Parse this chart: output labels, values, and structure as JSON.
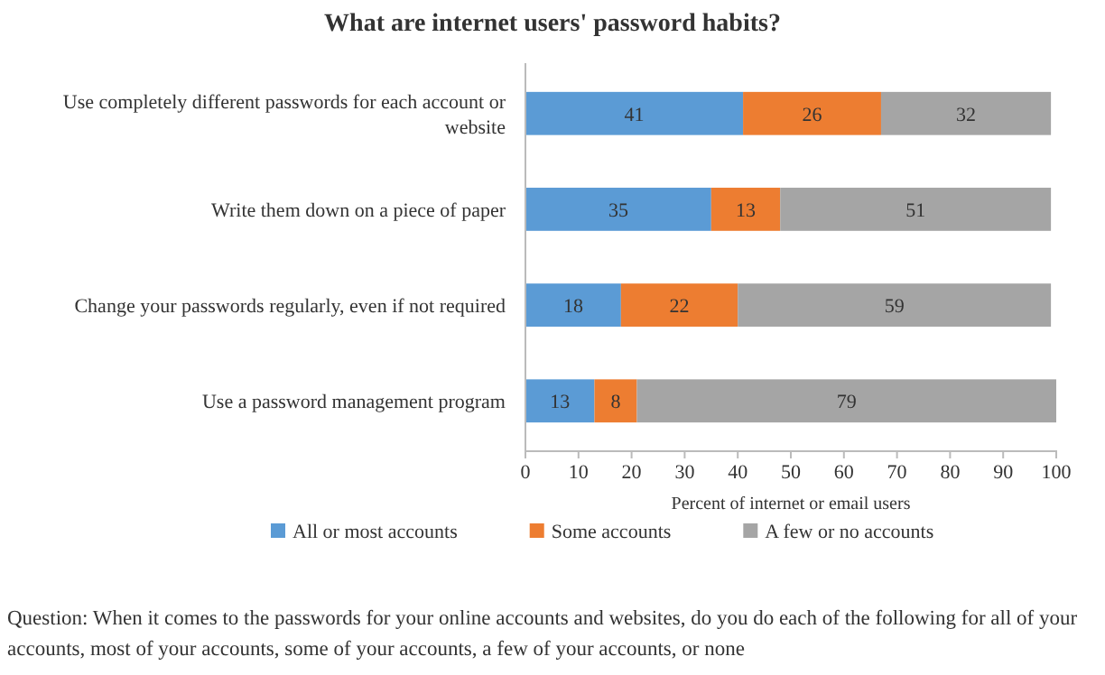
{
  "chart_data": {
    "type": "bar",
    "orientation": "horizontal",
    "stacked": true,
    "title": "What are internet users' password habits?",
    "categories": [
      "Use completely different passwords for each account or website",
      "Write them down on a piece of paper",
      "Change your passwords regularly, even if not required",
      "Use a password management program"
    ],
    "series": [
      {
        "name": "All or most accounts",
        "color": "#5b9bd5",
        "values": [
          41,
          35,
          18,
          13
        ]
      },
      {
        "name": "Some accounts",
        "color": "#ed7d31",
        "values": [
          26,
          13,
          22,
          8
        ]
      },
      {
        "name": "A few or no accounts",
        "color": "#a5a5a5",
        "values": [
          32,
          51,
          59,
          79
        ]
      }
    ],
    "xlim": [
      0,
      100
    ],
    "xticks": [
      0,
      10,
      20,
      30,
      40,
      50,
      60,
      70,
      80,
      90,
      100
    ],
    "xlabel": "Percent of internet or email users",
    "data_labels": true,
    "legend": "bottom",
    "grid": false,
    "annotations": [
      "Question: When it comes to the passwords for your online accounts and websites, do you do each of the following for all of your accounts, most of your accounts, some of your accounts, a few of your accounts, or none"
    ]
  }
}
